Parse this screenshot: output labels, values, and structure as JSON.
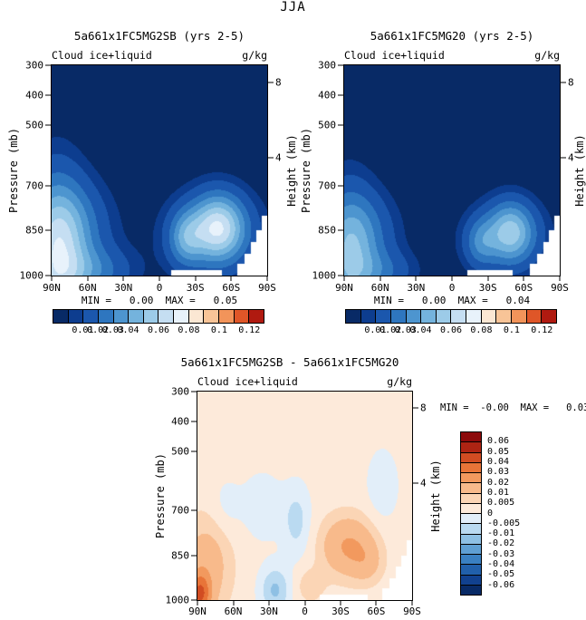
{
  "figure": {
    "title": "JJA"
  },
  "chart_data": {
    "type": "contour",
    "variable": "Cloud ice+liquid",
    "units": "g/kg",
    "x_axis": {
      "ticks": [
        "90N",
        "60N",
        "30N",
        "0",
        "30S",
        "60S",
        "90S"
      ],
      "fracs": [
        0,
        0.1667,
        0.3333,
        0.5,
        0.6667,
        0.8333,
        1
      ]
    },
    "y_axis": {
      "label": "Pressure (mb)",
      "range": [
        300,
        1000
      ],
      "ticks": [
        "300",
        "400",
        "500",
        "700",
        "850",
        "1000"
      ],
      "fracs": [
        0,
        0.1429,
        0.2857,
        0.5714,
        0.7857,
        1
      ]
    },
    "y2_axis": {
      "label": "Height (km)",
      "ticks": [
        "8",
        "4"
      ],
      "fracs": [
        0.08,
        0.44
      ]
    },
    "panels": [
      {
        "id": "left",
        "title": "5a661x1FC5MG2SB (yrs 2-5)",
        "subtitle_left": "Cloud ice+liquid",
        "subtitle_right": "g/kg",
        "minmax": "MIN =   0.00  MAX =   0.05",
        "min": 0.0,
        "max": 0.05,
        "levels": [
          0.005,
          0.01,
          0.02,
          0.03,
          0.04,
          0.05,
          0.06,
          0.07,
          0.08,
          0.09,
          0.1,
          0.11,
          0.12
        ],
        "colors": [
          "#082a66",
          "#0d3d8f",
          "#1b57ad",
          "#2e76bf",
          "#4d95cf",
          "#74b3dd",
          "#9ccbe8",
          "#c5def2",
          "#e8f2fb",
          "#fbe7d3",
          "#f8c497",
          "#f2945a",
          "#df5628",
          "#b01a10"
        ],
        "colorbar": {
          "labels": [
            "0.01",
            "0.02",
            "0.03",
            "0.04",
            "0.06",
            "0.08",
            "0.1",
            "0.12"
          ],
          "fracs": [
            0.1429,
            0.2143,
            0.2857,
            0.3571,
            0.5,
            0.6429,
            0.7857,
            0.9286
          ]
        },
        "base": 0,
        "blobs": [
          {
            "cx": 0.02,
            "cy": 0.95,
            "sx": 0.09,
            "sy": 0.28,
            "amp": 0.048
          },
          {
            "cx": 0.07,
            "cy": 0.78,
            "sx": 0.13,
            "sy": 0.16,
            "amp": 0.028
          },
          {
            "cx": 0.18,
            "cy": 0.98,
            "sx": 0.13,
            "sy": 0.08,
            "amp": 0.022
          },
          {
            "cx": 0.77,
            "cy": 0.77,
            "sx": 0.085,
            "sy": 0.11,
            "amp": 0.058
          },
          {
            "cx": 0.62,
            "cy": 0.82,
            "sx": 0.055,
            "sy": 0.09,
            "amp": 0.03
          },
          {
            "cx": 0.75,
            "cy": 0.8,
            "sx": 0.17,
            "sy": 0.14,
            "amp": 0.015
          }
        ],
        "surface_mask": [
          [
            0.555,
            0.79,
            0.028
          ],
          [
            0.86,
            0.895,
            0.055
          ],
          [
            0.895,
            0.925,
            0.105
          ],
          [
            0.925,
            0.95,
            0.16
          ],
          [
            0.95,
            0.975,
            0.215
          ],
          [
            0.975,
            1,
            0.285
          ]
        ]
      },
      {
        "id": "right",
        "title": "5a661x1FC5MG20 (yrs 2-5)",
        "subtitle_left": "Cloud ice+liquid",
        "subtitle_right": "g/kg",
        "minmax": "MIN =   0.00  MAX =   0.04",
        "min": 0.0,
        "max": 0.04,
        "levels": [
          0.005,
          0.01,
          0.02,
          0.03,
          0.04,
          0.05,
          0.06,
          0.07,
          0.08,
          0.09,
          0.1,
          0.11,
          0.12
        ],
        "colors": [
          "#082a66",
          "#0d3d8f",
          "#1b57ad",
          "#2e76bf",
          "#4d95cf",
          "#74b3dd",
          "#9ccbe8",
          "#c5def2",
          "#e8f2fb",
          "#fbe7d3",
          "#f8c497",
          "#f2945a",
          "#df5628",
          "#b01a10"
        ],
        "colorbar": {
          "labels": [
            "0.01",
            "0.02",
            "0.03",
            "0.04",
            "0.06",
            "0.08",
            "0.1",
            "0.12"
          ],
          "fracs": [
            0.1429,
            0.2143,
            0.2857,
            0.3571,
            0.5,
            0.6429,
            0.7857,
            0.9286
          ]
        },
        "base": 0,
        "blobs": [
          {
            "cx": 0.02,
            "cy": 0.95,
            "sx": 0.085,
            "sy": 0.24,
            "amp": 0.038
          },
          {
            "cx": 0.07,
            "cy": 0.8,
            "sx": 0.12,
            "sy": 0.14,
            "amp": 0.02
          },
          {
            "cx": 0.17,
            "cy": 0.98,
            "sx": 0.11,
            "sy": 0.07,
            "amp": 0.016
          },
          {
            "cx": 0.77,
            "cy": 0.79,
            "sx": 0.075,
            "sy": 0.1,
            "amp": 0.046
          },
          {
            "cx": 0.63,
            "cy": 0.84,
            "sx": 0.05,
            "sy": 0.08,
            "amp": 0.022
          },
          {
            "cx": 0.75,
            "cy": 0.82,
            "sx": 0.15,
            "sy": 0.12,
            "amp": 0.012
          }
        ],
        "surface_mask": [
          [
            0.57,
            0.78,
            0.025
          ],
          [
            0.86,
            0.895,
            0.055
          ],
          [
            0.895,
            0.925,
            0.105
          ],
          [
            0.925,
            0.95,
            0.16
          ],
          [
            0.95,
            0.975,
            0.215
          ],
          [
            0.975,
            1,
            0.285
          ]
        ]
      },
      {
        "id": "difference",
        "title": "5a661x1FC5MG2SB - 5a661x1FC5MG20",
        "subtitle_left": "Cloud ice+liquid",
        "subtitle_right": "g/kg",
        "minmax": "MIN =  -0.00  MAX =   0.03",
        "min": -0.0,
        "max": 0.03,
        "levels": [
          -0.06,
          -0.05,
          -0.04,
          -0.03,
          -0.02,
          -0.01,
          -0.005,
          0,
          0.005,
          0.01,
          0.02,
          0.03,
          0.04,
          0.05,
          0.06
        ],
        "colors": [
          "#082a66",
          "#11418f",
          "#2160ab",
          "#3a80c2",
          "#5f9fd3",
          "#8ec0e4",
          "#badaf1",
          "#e2eef9",
          "#fdeada",
          "#fbd5b5",
          "#f8ba8b",
          "#f2995e",
          "#e87438",
          "#d14c22",
          "#ad2413",
          "#8c0a0b"
        ],
        "colorbar": {
          "labels": [
            "0.06",
            "0.05",
            "0.04",
            "0.03",
            "0.02",
            "0.01",
            "0.005",
            "0",
            "-0.005",
            "-0.01",
            "-0.02",
            "-0.03",
            "-0.04",
            "-0.05",
            "-0.06"
          ]
        },
        "base": 0.002,
        "blobs": [
          {
            "cx": 0.01,
            "cy": 0.97,
            "sx": 0.035,
            "sy": 0.07,
            "amp": 0.034
          },
          {
            "cx": 0.04,
            "cy": 0.83,
            "sx": 0.08,
            "sy": 0.16,
            "amp": 0.013
          },
          {
            "cx": 0.7,
            "cy": 0.74,
            "sx": 0.085,
            "sy": 0.1,
            "amp": 0.019
          },
          {
            "cx": 0.79,
            "cy": 0.82,
            "sx": 0.05,
            "sy": 0.07,
            "amp": 0.008
          },
          {
            "cx": 0.52,
            "cy": 0.93,
            "sx": 0.05,
            "sy": 0.06,
            "amp": 0.006
          },
          {
            "cx": 0.36,
            "cy": 0.95,
            "sx": 0.05,
            "sy": 0.08,
            "amp": -0.013
          },
          {
            "cx": 0.46,
            "cy": 0.62,
            "sx": 0.045,
            "sy": 0.12,
            "amp": -0.009
          },
          {
            "cx": 0.3,
            "cy": 0.55,
            "sx": 0.07,
            "sy": 0.12,
            "amp": -0.005
          },
          {
            "cx": 0.86,
            "cy": 0.45,
            "sx": 0.05,
            "sy": 0.12,
            "amp": -0.006
          },
          {
            "cx": 0.13,
            "cy": 0.55,
            "sx": 0.05,
            "sy": 0.1,
            "amp": -0.004
          }
        ],
        "surface_mask": [
          [
            0.57,
            0.79,
            0.025
          ],
          [
            0.86,
            0.895,
            0.055
          ],
          [
            0.895,
            0.925,
            0.105
          ],
          [
            0.925,
            0.95,
            0.16
          ],
          [
            0.95,
            0.975,
            0.215
          ],
          [
            0.975,
            1,
            0.285
          ]
        ]
      }
    ]
  }
}
